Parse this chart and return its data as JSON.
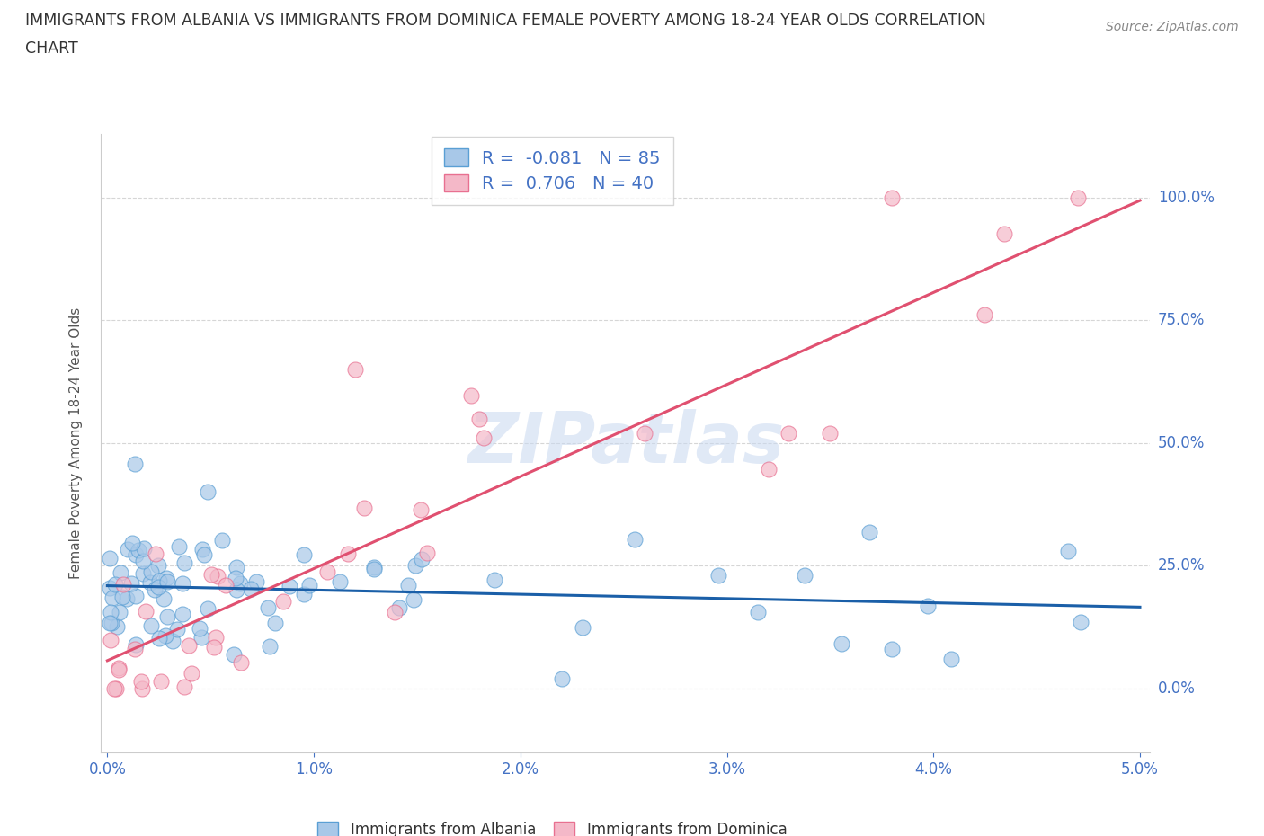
{
  "title_line1": "IMMIGRANTS FROM ALBANIA VS IMMIGRANTS FROM DOMINICA FEMALE POVERTY AMONG 18-24 YEAR OLDS CORRELATION",
  "title_line2": "CHART",
  "source": "Source: ZipAtlas.com",
  "ylabel": "Female Poverty Among 18-24 Year Olds",
  "albania_color": "#a8c8e8",
  "dominica_color": "#f4b8c8",
  "albania_edge": "#5a9fd4",
  "dominica_edge": "#e87090",
  "trend_albania_color": "#1a5fa8",
  "trend_dominica_color": "#e05070",
  "watermark": "ZIPatlas",
  "R_albania": -0.081,
  "N_albania": 85,
  "R_dominica": 0.706,
  "N_dominica": 40,
  "background_color": "#ffffff",
  "grid_color": "#cccccc",
  "title_color": "#333333",
  "axis_label_color": "#555555",
  "tick_color": "#4472c4",
  "legend_text_color": "#4472c4",
  "seed": 1234
}
